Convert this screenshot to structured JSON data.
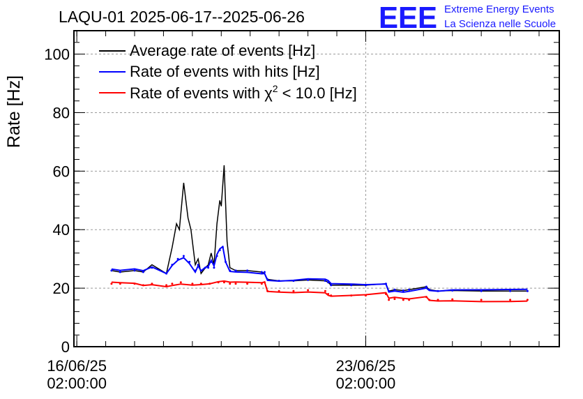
{
  "header": {
    "title": "LAQU-01 2025-06-17--2025-06-26",
    "logo_text": "EEE",
    "logo_line1": "Extreme Energy Events",
    "logo_line2": "La Scienza nelle Scuole"
  },
  "colors": {
    "average": "#000000",
    "hits": "#0000ff",
    "chi2": "#ff0000",
    "logo": "#1a1aff",
    "grid": "#999999"
  },
  "chart_data": {
    "type": "line",
    "title": "LAQU-01 2025-06-17--2025-06-26",
    "ylabel": "Rate [Hz]",
    "xlabel": "",
    "ylim": [
      0,
      108
    ],
    "xlim_days": [
      -0.1,
      16.7
    ],
    "yticks": [
      {
        "value": 0,
        "label": "0"
      },
      {
        "value": 20,
        "label": "20"
      },
      {
        "value": 40,
        "label": "40"
      },
      {
        "value": 60,
        "label": "60"
      },
      {
        "value": 80,
        "label": "80"
      },
      {
        "value": 100,
        "label": "100"
      }
    ],
    "xticks": [
      {
        "day": 0,
        "line1": "16/06/25",
        "line2": "02:00:00"
      },
      {
        "day": 10,
        "line1": "23/06/25",
        "line2": "02:00:00"
      }
    ],
    "grid": true,
    "legend_position": "top-left",
    "legend": [
      {
        "label": "Average rate of events [Hz]",
        "color_key": "average"
      },
      {
        "label": "Rate of events with hits [Hz]",
        "color_key": "hits"
      },
      {
        "label_pre": "Rate of events with χ",
        "label_sup": "2",
        "label_post": " < 10.0 [Hz]",
        "color_key": "chi2"
      }
    ],
    "series": [
      {
        "name": "Average rate of events [Hz]",
        "color_key": "average",
        "x": [
          1.2,
          1.5,
          2.0,
          2.3,
          2.6,
          3.1,
          3.3,
          3.45,
          3.55,
          3.7,
          3.85,
          3.95,
          4.1,
          4.2,
          4.3,
          4.45,
          4.55,
          4.65,
          4.75,
          4.85,
          4.95,
          5.0,
          5.1,
          5.2,
          5.3,
          5.5,
          5.9,
          6.4,
          6.5,
          6.6,
          7.0,
          7.5,
          8.0,
          8.6,
          8.7,
          8.8,
          9.5,
          10.0,
          10.7,
          10.8,
          11.0,
          11.3,
          11.5,
          12.1,
          12.2,
          12.5,
          13.0,
          14.0,
          15.0,
          15.6
        ],
        "y": [
          26,
          25.5,
          26,
          25.5,
          28,
          25,
          34,
          42,
          40,
          56,
          44,
          40,
          28,
          30,
          25,
          27,
          28,
          32,
          28,
          42,
          50,
          48,
          62,
          36,
          27,
          26,
          26,
          25.5,
          25,
          23,
          22.5,
          22.5,
          22.8,
          22.5,
          22,
          21,
          21,
          21,
          21.5,
          19,
          19.5,
          19.2,
          19.5,
          20.5,
          19.5,
          19,
          19.2,
          19,
          19,
          19
        ]
      },
      {
        "name": "Rate of events with hits [Hz]",
        "color_key": "hits",
        "x": [
          1.2,
          1.5,
          2.0,
          2.3,
          2.6,
          3.1,
          3.3,
          3.5,
          3.7,
          3.9,
          4.1,
          4.2,
          4.3,
          4.45,
          4.55,
          4.65,
          4.75,
          4.85,
          4.95,
          5.05,
          5.15,
          5.3,
          5.5,
          5.9,
          6.4,
          6.5,
          6.6,
          7.0,
          7.5,
          8.0,
          8.6,
          8.7,
          8.8,
          9.5,
          10.0,
          10.7,
          10.8,
          11.0,
          11.3,
          11.5,
          12.1,
          12.2,
          12.5,
          13.0,
          14.0,
          15.0,
          15.6
        ],
        "y": [
          26,
          25.5,
          26,
          25.5,
          27,
          25,
          28,
          30,
          31,
          29,
          26,
          28,
          26,
          27,
          27,
          29,
          27,
          31,
          33,
          34,
          29,
          26,
          26,
          26,
          25.5,
          25.5,
          23,
          22.5,
          22.5,
          22.8,
          22.5,
          22,
          21,
          21,
          21,
          21.5,
          19,
          19.5,
          19.2,
          19.5,
          20.5,
          19.5,
          19,
          19.2,
          19,
          19,
          19
        ]
      },
      {
        "name": "Rate of events with χ² < 10.0 [Hz]",
        "color_key": "chi2",
        "x": [
          1.2,
          1.5,
          2.0,
          2.3,
          2.6,
          3.1,
          3.3,
          3.6,
          4.0,
          4.3,
          4.6,
          4.9,
          5.1,
          5.3,
          5.5,
          5.9,
          6.4,
          6.5,
          6.6,
          7.0,
          7.5,
          8.0,
          8.6,
          8.7,
          8.8,
          9.5,
          10.0,
          10.7,
          10.8,
          11.0,
          11.3,
          11.5,
          12.1,
          12.2,
          12.5,
          13.0,
          14.0,
          15.0,
          15.6
        ],
        "y": [
          21.5,
          21.5,
          21.5,
          21,
          21.5,
          21,
          21.5,
          22,
          21.5,
          21.5,
          21.5,
          22,
          22,
          21.5,
          21.5,
          21.5,
          21.5,
          22,
          19,
          19,
          19,
          19.3,
          19,
          18,
          17.5,
          17.5,
          17.5,
          18,
          16,
          16.3,
          16,
          16,
          17,
          16,
          16,
          16.2,
          16,
          16,
          16
        ]
      }
    ]
  }
}
